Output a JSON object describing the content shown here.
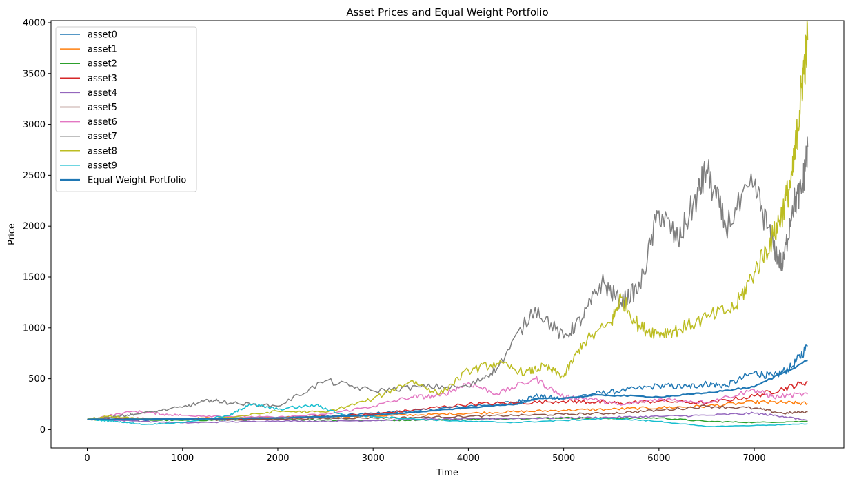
{
  "chart_data": {
    "type": "line",
    "title": "Asset Prices and Equal Weight Portfolio",
    "xlabel": "Time",
    "ylabel": "Price",
    "xlim": [
      -380,
      7940
    ],
    "ylim": [
      -180,
      4020
    ],
    "xticks": [
      0,
      1000,
      2000,
      3000,
      4000,
      5000,
      6000,
      7000
    ],
    "yticks": [
      0,
      500,
      1000,
      1500,
      2000,
      2500,
      3000,
      3500,
      4000
    ],
    "grid": false,
    "legend_position": "top-left",
    "series": [
      {
        "name": "asset0",
        "color": "#1f77b4",
        "width": 1.5,
        "points": [
          [
            0,
            100
          ],
          [
            500,
            90
          ],
          [
            1000,
            100
          ],
          [
            1500,
            95
          ],
          [
            2000,
            120
          ],
          [
            2500,
            130
          ],
          [
            3000,
            160
          ],
          [
            3500,
            190
          ],
          [
            4000,
            230
          ],
          [
            4500,
            270
          ],
          [
            4700,
            330
          ],
          [
            5000,
            300
          ],
          [
            5300,
            350
          ],
          [
            5600,
            380
          ],
          [
            6000,
            430
          ],
          [
            6300,
            420
          ],
          [
            6500,
            450
          ],
          [
            6700,
            430
          ],
          [
            7000,
            560
          ],
          [
            7200,
            520
          ],
          [
            7400,
            620
          ],
          [
            7560,
            820
          ]
        ]
      },
      {
        "name": "asset1",
        "color": "#ff7f0e",
        "width": 1.5,
        "points": [
          [
            0,
            100
          ],
          [
            500,
            105
          ],
          [
            1000,
            110
          ],
          [
            1500,
            115
          ],
          [
            2000,
            120
          ],
          [
            2500,
            125
          ],
          [
            3000,
            135
          ],
          [
            3500,
            145
          ],
          [
            4000,
            160
          ],
          [
            4500,
            175
          ],
          [
            5000,
            190
          ],
          [
            5500,
            200
          ],
          [
            6000,
            215
          ],
          [
            6500,
            230
          ],
          [
            7000,
            270
          ],
          [
            7300,
            265
          ],
          [
            7560,
            255
          ]
        ]
      },
      {
        "name": "asset2",
        "color": "#2ca02c",
        "width": 1.5,
        "points": [
          [
            0,
            100
          ],
          [
            500,
            95
          ],
          [
            1000,
            90
          ],
          [
            1500,
            95
          ],
          [
            2000,
            100
          ],
          [
            2500,
            95
          ],
          [
            3000,
            90
          ],
          [
            3500,
            95
          ],
          [
            4000,
            100
          ],
          [
            4500,
            110
          ],
          [
            5000,
            115
          ],
          [
            5500,
            110
          ],
          [
            6000,
            115
          ],
          [
            6500,
            80
          ],
          [
            7000,
            70
          ],
          [
            7560,
            80
          ]
        ]
      },
      {
        "name": "asset3",
        "color": "#d62728",
        "width": 1.5,
        "points": [
          [
            0,
            100
          ],
          [
            500,
            110
          ],
          [
            1000,
            100
          ],
          [
            1500,
            105
          ],
          [
            2000,
            110
          ],
          [
            2500,
            130
          ],
          [
            3000,
            150
          ],
          [
            3500,
            200
          ],
          [
            4000,
            250
          ],
          [
            4500,
            260
          ],
          [
            5000,
            280
          ],
          [
            5300,
            270
          ],
          [
            5600,
            260
          ],
          [
            6000,
            280
          ],
          [
            6500,
            260
          ],
          [
            7000,
            330
          ],
          [
            7300,
            400
          ],
          [
            7560,
            470
          ]
        ]
      },
      {
        "name": "asset4",
        "color": "#9467bd",
        "width": 1.5,
        "points": [
          [
            0,
            100
          ],
          [
            500,
            85
          ],
          [
            1000,
            65
          ],
          [
            1500,
            75
          ],
          [
            2000,
            85
          ],
          [
            2500,
            80
          ],
          [
            3000,
            90
          ],
          [
            3500,
            100
          ],
          [
            4000,
            105
          ],
          [
            4500,
            110
          ],
          [
            5000,
            115
          ],
          [
            5500,
            120
          ],
          [
            6000,
            130
          ],
          [
            6500,
            140
          ],
          [
            7000,
            160
          ],
          [
            7300,
            130
          ],
          [
            7560,
            90
          ]
        ]
      },
      {
        "name": "asset5",
        "color": "#8c564b",
        "width": 1.5,
        "points": [
          [
            0,
            100
          ],
          [
            500,
            105
          ],
          [
            1000,
            100
          ],
          [
            1500,
            95
          ],
          [
            2000,
            105
          ],
          [
            2500,
            110
          ],
          [
            3000,
            115
          ],
          [
            3500,
            120
          ],
          [
            4000,
            130
          ],
          [
            4500,
            140
          ],
          [
            5000,
            150
          ],
          [
            5500,
            160
          ],
          [
            6000,
            190
          ],
          [
            6500,
            230
          ],
          [
            7000,
            210
          ],
          [
            7300,
            160
          ],
          [
            7560,
            175
          ]
        ]
      },
      {
        "name": "asset6",
        "color": "#e377c2",
        "width": 1.5,
        "points": [
          [
            0,
            100
          ],
          [
            500,
            180
          ],
          [
            800,
            150
          ],
          [
            1000,
            140
          ],
          [
            1500,
            130
          ],
          [
            2000,
            120
          ],
          [
            2500,
            150
          ],
          [
            3000,
            230
          ],
          [
            3400,
            320
          ],
          [
            3700,
            330
          ],
          [
            4000,
            460
          ],
          [
            4300,
            350
          ],
          [
            4700,
            500
          ],
          [
            5000,
            320
          ],
          [
            5300,
            300
          ],
          [
            5600,
            240
          ],
          [
            6000,
            300
          ],
          [
            6500,
            270
          ],
          [
            7000,
            390
          ],
          [
            7200,
            320
          ],
          [
            7560,
            350
          ]
        ]
      },
      {
        "name": "asset7",
        "color": "#7f7f7f",
        "width": 1.5,
        "points": [
          [
            0,
            100
          ],
          [
            300,
            130
          ],
          [
            500,
            150
          ],
          [
            1000,
            220
          ],
          [
            1300,
            290
          ],
          [
            1500,
            260
          ],
          [
            2000,
            230
          ],
          [
            2500,
            480
          ],
          [
            3000,
            380
          ],
          [
            3500,
            420
          ],
          [
            4000,
            420
          ],
          [
            4300,
            600
          ],
          [
            4700,
            1200
          ],
          [
            5000,
            900
          ],
          [
            5200,
            1100
          ],
          [
            5400,
            1450
          ],
          [
            5600,
            1250
          ],
          [
            5800,
            1400
          ],
          [
            6000,
            2150
          ],
          [
            6200,
            1850
          ],
          [
            6400,
            2300
          ],
          [
            6500,
            2550
          ],
          [
            6700,
            2000
          ],
          [
            7000,
            2400
          ],
          [
            7200,
            1800
          ],
          [
            7300,
            1600
          ],
          [
            7400,
            2200
          ],
          [
            7500,
            2350
          ],
          [
            7560,
            2780
          ]
        ]
      },
      {
        "name": "asset8",
        "color": "#bcbd22",
        "width": 1.5,
        "points": [
          [
            0,
            100
          ],
          [
            200,
            130
          ],
          [
            500,
            110
          ],
          [
            1000,
            100
          ],
          [
            1500,
            120
          ],
          [
            2000,
            180
          ],
          [
            2500,
            170
          ],
          [
            3000,
            300
          ],
          [
            3400,
            480
          ],
          [
            3700,
            350
          ],
          [
            4000,
            580
          ],
          [
            4300,
            650
          ],
          [
            4600,
            560
          ],
          [
            4800,
            620
          ],
          [
            5000,
            520
          ],
          [
            5200,
            850
          ],
          [
            5500,
            1050
          ],
          [
            5600,
            1300
          ],
          [
            5800,
            1000
          ],
          [
            6000,
            950
          ],
          [
            6200,
            980
          ],
          [
            6500,
            1100
          ],
          [
            6800,
            1200
          ],
          [
            7000,
            1550
          ],
          [
            7200,
            1900
          ],
          [
            7300,
            2150
          ],
          [
            7400,
            2500
          ],
          [
            7450,
            2900
          ],
          [
            7500,
            3400
          ],
          [
            7560,
            3830
          ]
        ]
      },
      {
        "name": "asset9",
        "color": "#17becf",
        "width": 1.5,
        "points": [
          [
            0,
            100
          ],
          [
            300,
            80
          ],
          [
            600,
            50
          ],
          [
            1000,
            70
          ],
          [
            1500,
            140
          ],
          [
            1700,
            250
          ],
          [
            2000,
            200
          ],
          [
            2400,
            240
          ],
          [
            2700,
            140
          ],
          [
            3000,
            130
          ],
          [
            3500,
            100
          ],
          [
            4000,
            80
          ],
          [
            4500,
            70
          ],
          [
            5000,
            90
          ],
          [
            5500,
            110
          ],
          [
            6000,
            80
          ],
          [
            6500,
            30
          ],
          [
            7000,
            40
          ],
          [
            7560,
            55
          ]
        ]
      },
      {
        "name": "Equal Weight Portfolio",
        "color": "#1f77b4",
        "width": 2.2,
        "points": [
          [
            0,
            100
          ],
          [
            1000,
            105
          ],
          [
            2000,
            115
          ],
          [
            3000,
            140
          ],
          [
            3500,
            175
          ],
          [
            4000,
            215
          ],
          [
            4500,
            250
          ],
          [
            4700,
            300
          ],
          [
            5000,
            310
          ],
          [
            5400,
            340
          ],
          [
            6000,
            320
          ],
          [
            6500,
            360
          ],
          [
            7000,
            420
          ],
          [
            7560,
            680
          ]
        ]
      }
    ]
  }
}
